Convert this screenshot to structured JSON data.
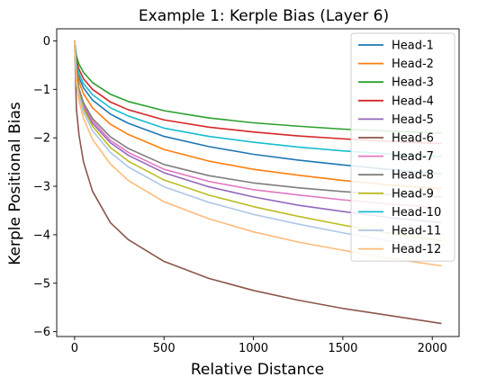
{
  "chart_data": {
    "type": "line",
    "title": "Example 1: Kerple Bias (Layer 6)",
    "xlabel": "Relative Distance",
    "ylabel": "Kerple Positional Bias",
    "xlim": [
      -100,
      2150
    ],
    "ylim": [
      -6.1,
      0.25
    ],
    "xticks": [
      0,
      500,
      1000,
      1500,
      2000
    ],
    "yticks": [
      0,
      -1,
      -2,
      -3,
      -4,
      -5,
      -6
    ],
    "grid": false,
    "legend_position": "top-right",
    "x": [
      0,
      10,
      25,
      50,
      100,
      200,
      300,
      500,
      750,
      1000,
      1250,
      1500,
      1750,
      2048
    ],
    "series": [
      {
        "name": "Head-1",
        "color": "#1f77b4",
        "values": [
          0,
          -0.54,
          -0.76,
          -0.97,
          -1.22,
          -1.51,
          -1.7,
          -1.97,
          -2.18,
          -2.34,
          -2.46,
          -2.56,
          -2.65,
          -2.74
        ]
      },
      {
        "name": "Head-2",
        "color": "#ff7f0e",
        "values": [
          0,
          -0.6,
          -0.85,
          -1.09,
          -1.38,
          -1.72,
          -1.93,
          -2.24,
          -2.48,
          -2.65,
          -2.77,
          -2.88,
          -2.97,
          -3.05
        ]
      },
      {
        "name": "Head-3",
        "color": "#2ca02c",
        "values": [
          0,
          -0.31,
          -0.48,
          -0.65,
          -0.86,
          -1.1,
          -1.25,
          -1.44,
          -1.59,
          -1.69,
          -1.76,
          -1.82,
          -1.86,
          -1.9
        ]
      },
      {
        "name": "Head-4",
        "color": "#d62728",
        "values": [
          0,
          -0.4,
          -0.59,
          -0.78,
          -1.0,
          -1.26,
          -1.42,
          -1.63,
          -1.78,
          -1.88,
          -1.96,
          -2.02,
          -2.07,
          -2.12
        ]
      },
      {
        "name": "Head-5",
        "color": "#9467bd",
        "values": [
          0,
          -0.75,
          -1.05,
          -1.35,
          -1.7,
          -2.1,
          -2.36,
          -2.72,
          -3.01,
          -3.22,
          -3.39,
          -3.52,
          -3.64,
          -3.75
        ]
      },
      {
        "name": "Head-6",
        "color": "#8c564b",
        "values": [
          0,
          -1.4,
          -1.95,
          -2.5,
          -3.1,
          -3.75,
          -4.1,
          -4.55,
          -4.9,
          -5.15,
          -5.35,
          -5.52,
          -5.66,
          -5.83
        ]
      },
      {
        "name": "Head-7",
        "color": "#e377c2",
        "values": [
          0,
          -0.72,
          -1.02,
          -1.31,
          -1.65,
          -2.05,
          -2.3,
          -2.65,
          -2.9,
          -3.07,
          -3.18,
          -3.28,
          -3.36,
          -3.45
        ]
      },
      {
        "name": "Head-8",
        "color": "#7f7f7f",
        "values": [
          0,
          -0.7,
          -0.99,
          -1.28,
          -1.6,
          -1.98,
          -2.22,
          -2.55,
          -2.78,
          -2.93,
          -3.03,
          -3.11,
          -3.17,
          -3.22
        ]
      },
      {
        "name": "Head-9",
        "color": "#bcbd22",
        "values": [
          0,
          -0.78,
          -1.09,
          -1.4,
          -1.76,
          -2.2,
          -2.48,
          -2.87,
          -3.18,
          -3.42,
          -3.62,
          -3.8,
          -3.96,
          -4.12
        ]
      },
      {
        "name": "Head-10",
        "color": "#17becf",
        "values": [
          0,
          -0.48,
          -0.68,
          -0.88,
          -1.11,
          -1.38,
          -1.55,
          -1.8,
          -1.97,
          -2.09,
          -2.19,
          -2.27,
          -2.33,
          -2.39
        ]
      },
      {
        "name": "Head-11",
        "color": "#aec7e8",
        "values": [
          0,
          -0.82,
          -1.14,
          -1.47,
          -1.85,
          -2.3,
          -2.6,
          -3.01,
          -3.33,
          -3.58,
          -3.78,
          -3.96,
          -4.12,
          -4.29
        ]
      },
      {
        "name": "Head-12",
        "color": "#ffbb78",
        "values": [
          0,
          -0.88,
          -1.24,
          -1.6,
          -2.03,
          -2.54,
          -2.88,
          -3.32,
          -3.67,
          -3.94,
          -4.15,
          -4.32,
          -4.48,
          -4.64
        ]
      }
    ]
  }
}
